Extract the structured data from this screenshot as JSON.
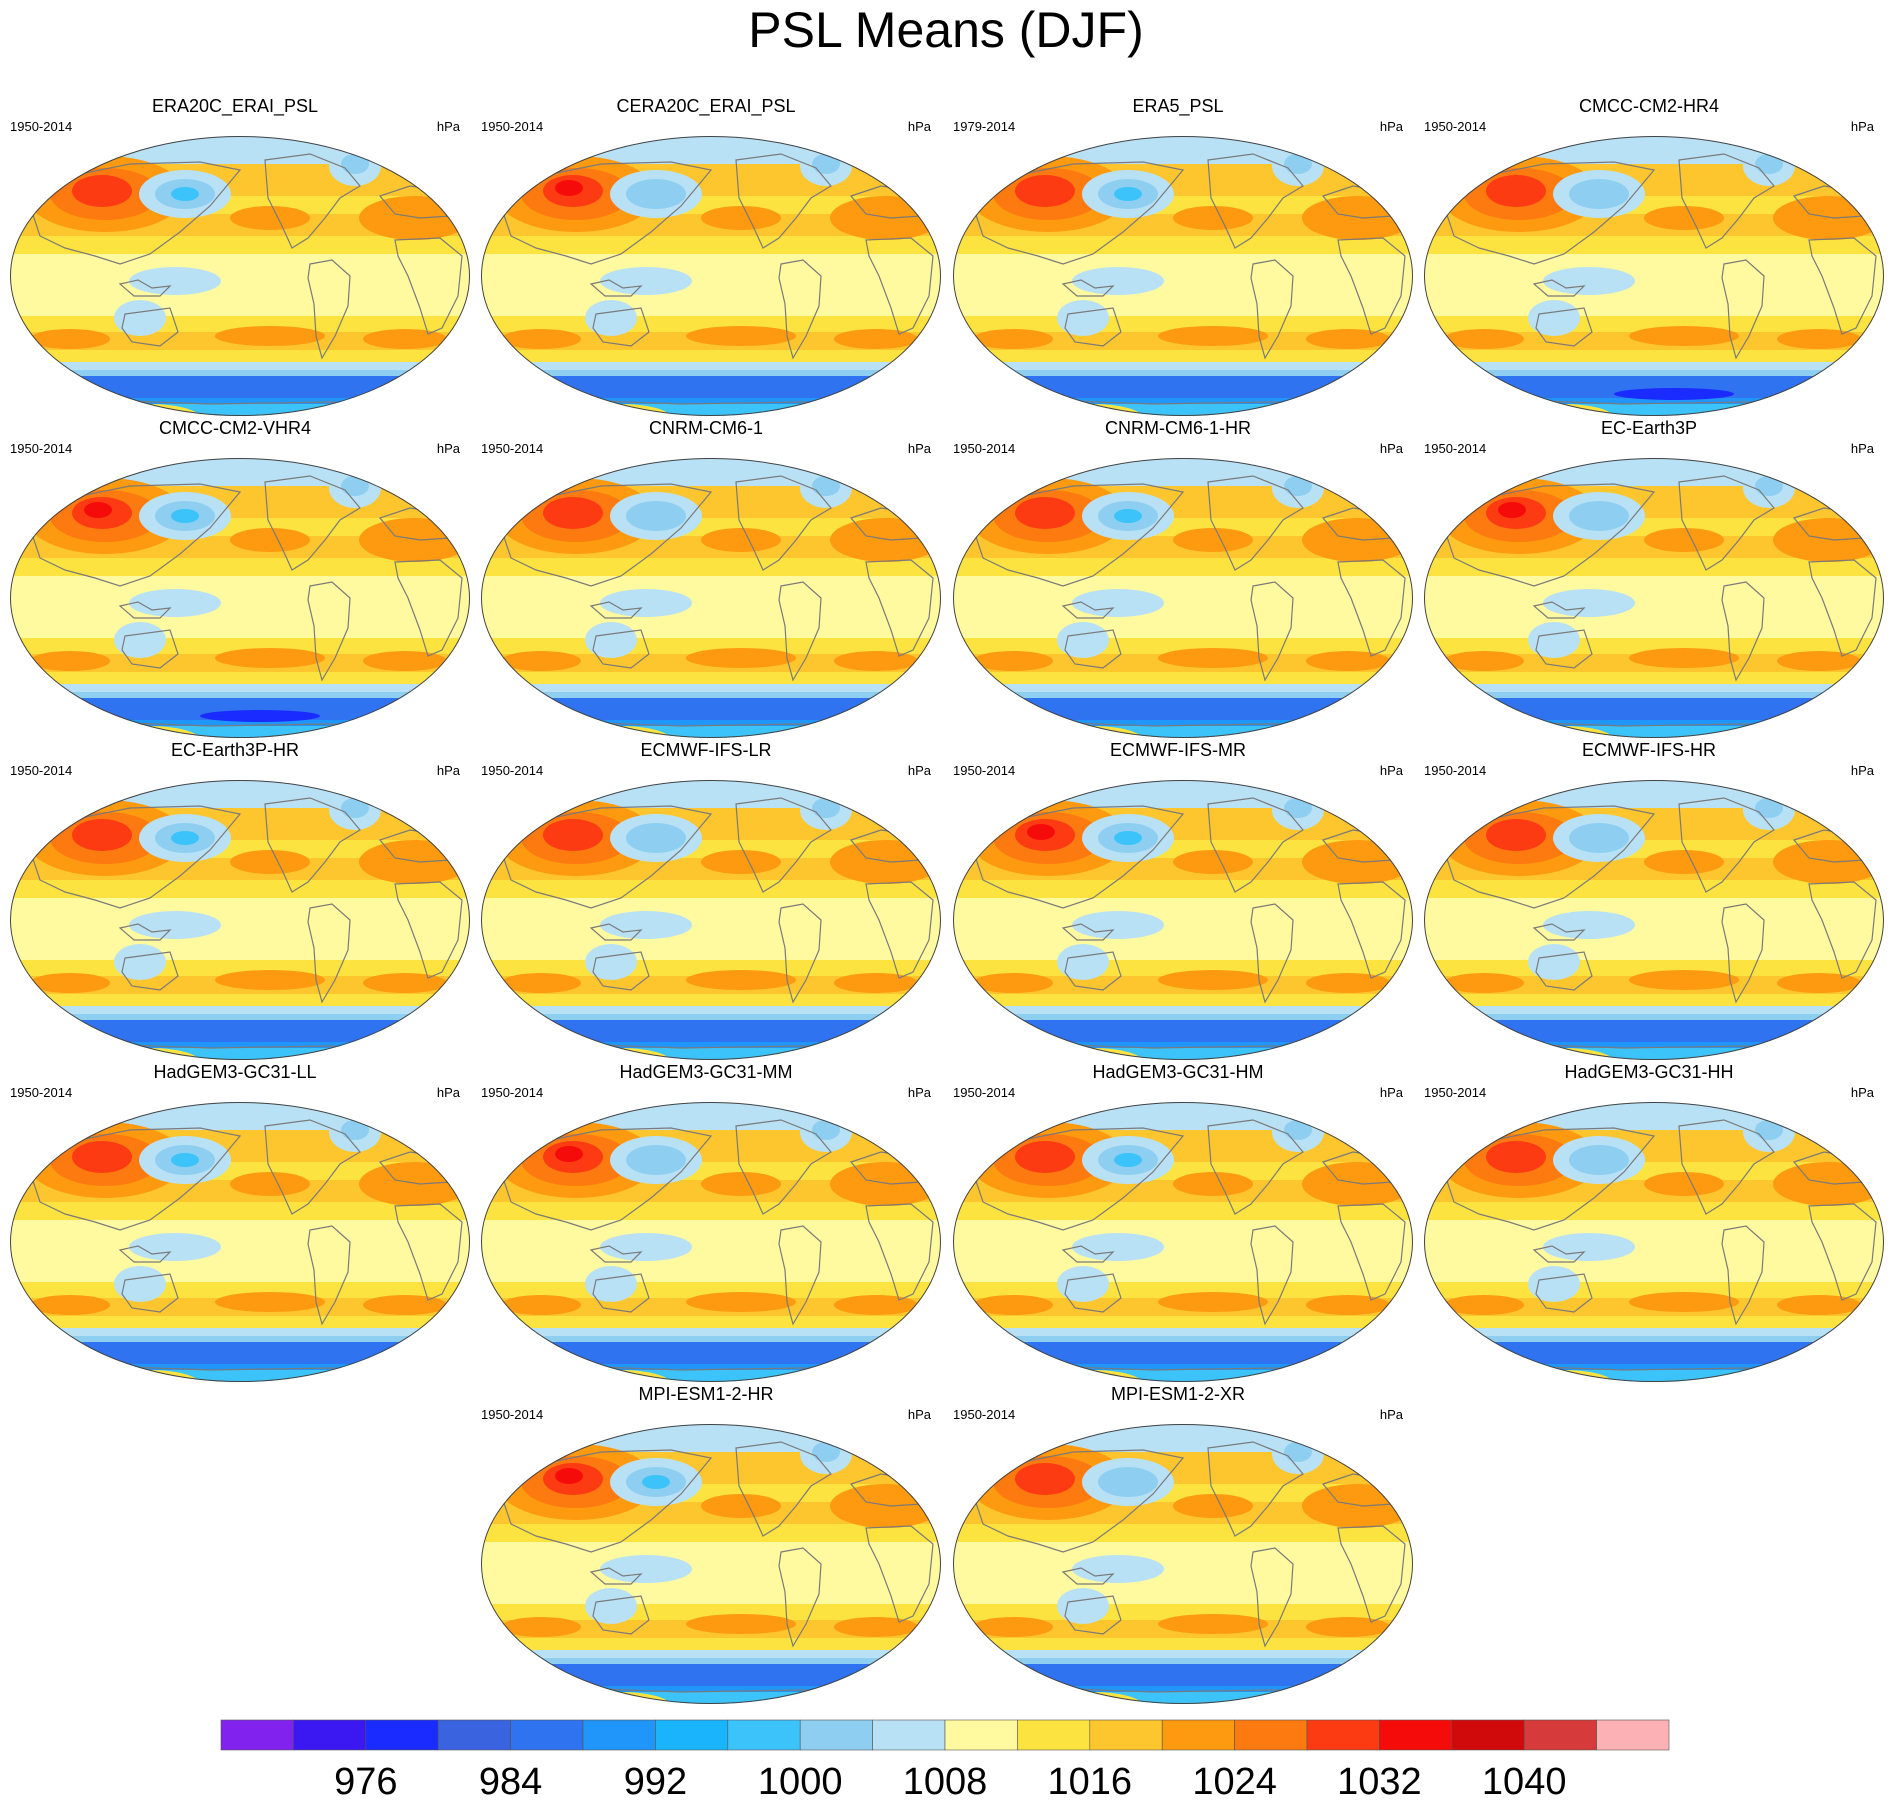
{
  "title": "PSL Means (DJF)",
  "unit_label": "hPa",
  "panels": [
    {
      "name": "ERA20C_ERAI_PSL",
      "period": "1950-2014"
    },
    {
      "name": "CERA20C_ERAI_PSL",
      "period": "1950-2014"
    },
    {
      "name": "ERA5_PSL",
      "period": "1979-2014"
    },
    {
      "name": "CMCC-CM2-HR4",
      "period": "1950-2014"
    },
    {
      "name": "CMCC-CM2-VHR4",
      "period": "1950-2014"
    },
    {
      "name": "CNRM-CM6-1",
      "period": "1950-2014"
    },
    {
      "name": "CNRM-CM6-1-HR",
      "period": "1950-2014"
    },
    {
      "name": "EC-Earth3P",
      "period": "1950-2014"
    },
    {
      "name": "EC-Earth3P-HR",
      "period": "1950-2014"
    },
    {
      "name": "ECMWF-IFS-LR",
      "period": "1950-2014"
    },
    {
      "name": "ECMWF-IFS-MR",
      "period": "1950-2014"
    },
    {
      "name": "ECMWF-IFS-HR",
      "period": "1950-2014"
    },
    {
      "name": "HadGEM3-GC31-LL",
      "period": "1950-2014"
    },
    {
      "name": "HadGEM3-GC31-MM",
      "period": "1950-2014"
    },
    {
      "name": "HadGEM3-GC31-HM",
      "period": "1950-2014"
    },
    {
      "name": "HadGEM3-GC31-HH",
      "period": "1950-2014"
    },
    {
      "name": "MPI-ESM1-2-HR",
      "period": "1950-2014"
    },
    {
      "name": "MPI-ESM1-2-XR",
      "period": "1950-2014"
    }
  ],
  "colorbar": {
    "colors": [
      "#8122ee",
      "#3b18f2",
      "#1a2bff",
      "#3a63e0",
      "#2f73f0",
      "#2196fa",
      "#19b4fc",
      "#3cc4fa",
      "#8ecff1",
      "#b9e1f5",
      "#fff9a0",
      "#fde33f",
      "#fdc62e",
      "#fd9a0f",
      "#fd7a10",
      "#fd3b12",
      "#f50c0a",
      "#d00a0a",
      "#d73a3a",
      "#fcb1b4"
    ],
    "tick_labels": [
      "976",
      "984",
      "992",
      "1000",
      "1008",
      "1016",
      "1024",
      "1032",
      "1040"
    ]
  }
}
